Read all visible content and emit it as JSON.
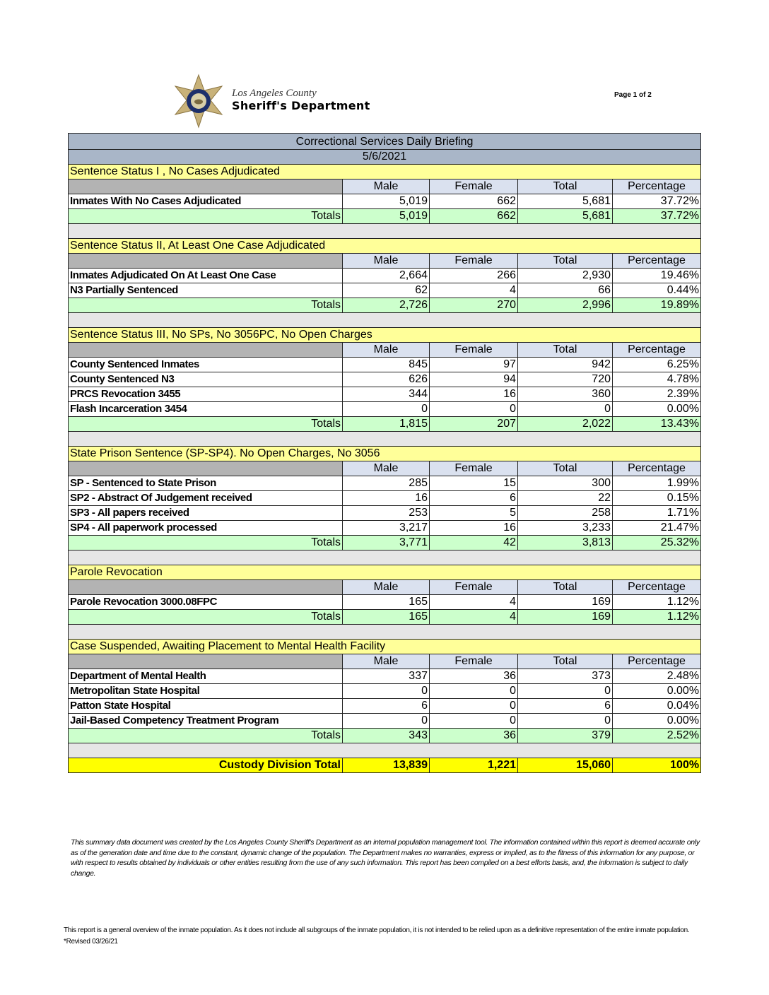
{
  "header": {
    "logo_line1": "Los Angeles County",
    "logo_line2": "Sheriff's Department",
    "page_label": "Page 1 of 2"
  },
  "report": {
    "title": "Correctional Services Daily Briefing",
    "date": "5/6/2021",
    "columns": [
      "Male",
      "Female",
      "Total",
      "Percentage"
    ],
    "totals_label": "Totals",
    "sections": [
      {
        "title": "Sentence Status I , No Cases Adjudicated",
        "rows": [
          [
            "Inmates With No Cases Adjudicated",
            "5,019",
            "662",
            "5,681",
            "37.72%"
          ]
        ],
        "totals": [
          "5,019",
          "662",
          "5,681",
          "37.72%"
        ]
      },
      {
        "title": "Sentence Status II, At Least One Case Adjudicated",
        "rows": [
          [
            "Inmates Adjudicated On At Least One Case",
            "2,664",
            "266",
            "2,930",
            "19.46%"
          ],
          [
            "N3 Partially Sentenced",
            "62",
            "4",
            "66",
            "0.44%"
          ]
        ],
        "totals": [
          "2,726",
          "270",
          "2,996",
          "19.89%"
        ]
      },
      {
        "title": "Sentence Status III, No SPs, No 3056PC, No Open Charges",
        "rows": [
          [
            "County Sentenced Inmates",
            "845",
            "97",
            "942",
            "6.25%"
          ],
          [
            "County Sentenced N3",
            "626",
            "94",
            "720",
            "4.78%"
          ],
          [
            "PRCS Revocation 3455",
            "344",
            "16",
            "360",
            "2.39%"
          ],
          [
            "Flash Incarceration 3454",
            "0",
            "0",
            "0",
            "0.00%"
          ]
        ],
        "totals": [
          "1,815",
          "207",
          "2,022",
          "13.43%"
        ]
      },
      {
        "title": "State Prison Sentence (SP-SP4). No Open Charges, No 3056",
        "rows": [
          [
            "SP - Sentenced to State Prison",
            "285",
            "15",
            "300",
            "1.99%"
          ],
          [
            "SP2 - Abstract Of Judgement received",
            "16",
            "6",
            "22",
            "0.15%"
          ],
          [
            "SP3 - All papers received",
            "253",
            "5",
            "258",
            "1.71%"
          ],
          [
            "SP4 - All paperwork processed",
            "3,217",
            "16",
            "3,233",
            "21.47%"
          ]
        ],
        "totals": [
          "3,771",
          "42",
          "3,813",
          "25.32%"
        ]
      },
      {
        "title": "Parole Revocation",
        "rows": [
          [
            "Parole Revocation 3000.08FPC",
            "165",
            "4",
            "169",
            "1.12%"
          ]
        ],
        "totals": [
          "165",
          "4",
          "169",
          "1.12%"
        ]
      },
      {
        "title": "Case Suspended, Awaiting Placement to Mental Health Facility",
        "rows": [
          [
            "Department of Mental Health",
            "337",
            "36",
            "373",
            "2.48%"
          ],
          [
            "Metropolitan State Hospital",
            "0",
            "0",
            "0",
            "0.00%"
          ],
          [
            "Patton State Hospital",
            "6",
            "0",
            "6",
            "0.04%"
          ],
          [
            "Jail-Based Competency Treatment Program",
            "0",
            "0",
            "0",
            "0.00%"
          ]
        ],
        "totals": [
          "343",
          "36",
          "379",
          "2.52%"
        ]
      }
    ],
    "grand_total": {
      "label": "Custody Division Total",
      "values": [
        "13,839",
        "1,221",
        "15,060",
        "100%"
      ]
    }
  },
  "disclaimer": "This summary data document was created by the Los Angeles County Sheriff's Department as an internal population management tool.  The information contained within this report is deemed accurate only as of the generation date and time due to the constant, dynamic change of the population.  The Department makes no warranties, express or implied, as to the fitness of this information for any purpose, or with respect to results obtained by individuals or other entities resulting from the use of any such information.  This report has been compiled on a best efforts basis, and, the information is subject to daily change.",
  "footnote": {
    "text": "This report is a general overview of the inmate population.  As it does not include all subgroups of the inmate population, it is not intended to be relied upon as a definitive representation of the entire inmate population.",
    "revised": "*Revised 03/26/21"
  },
  "colors": {
    "title_bg": "#a9b6c8",
    "section_bg": "#ffff99",
    "header_bg": "#dae1ef",
    "totals_bg": "#ccffcc",
    "grand_bg": "#ffff00"
  }
}
